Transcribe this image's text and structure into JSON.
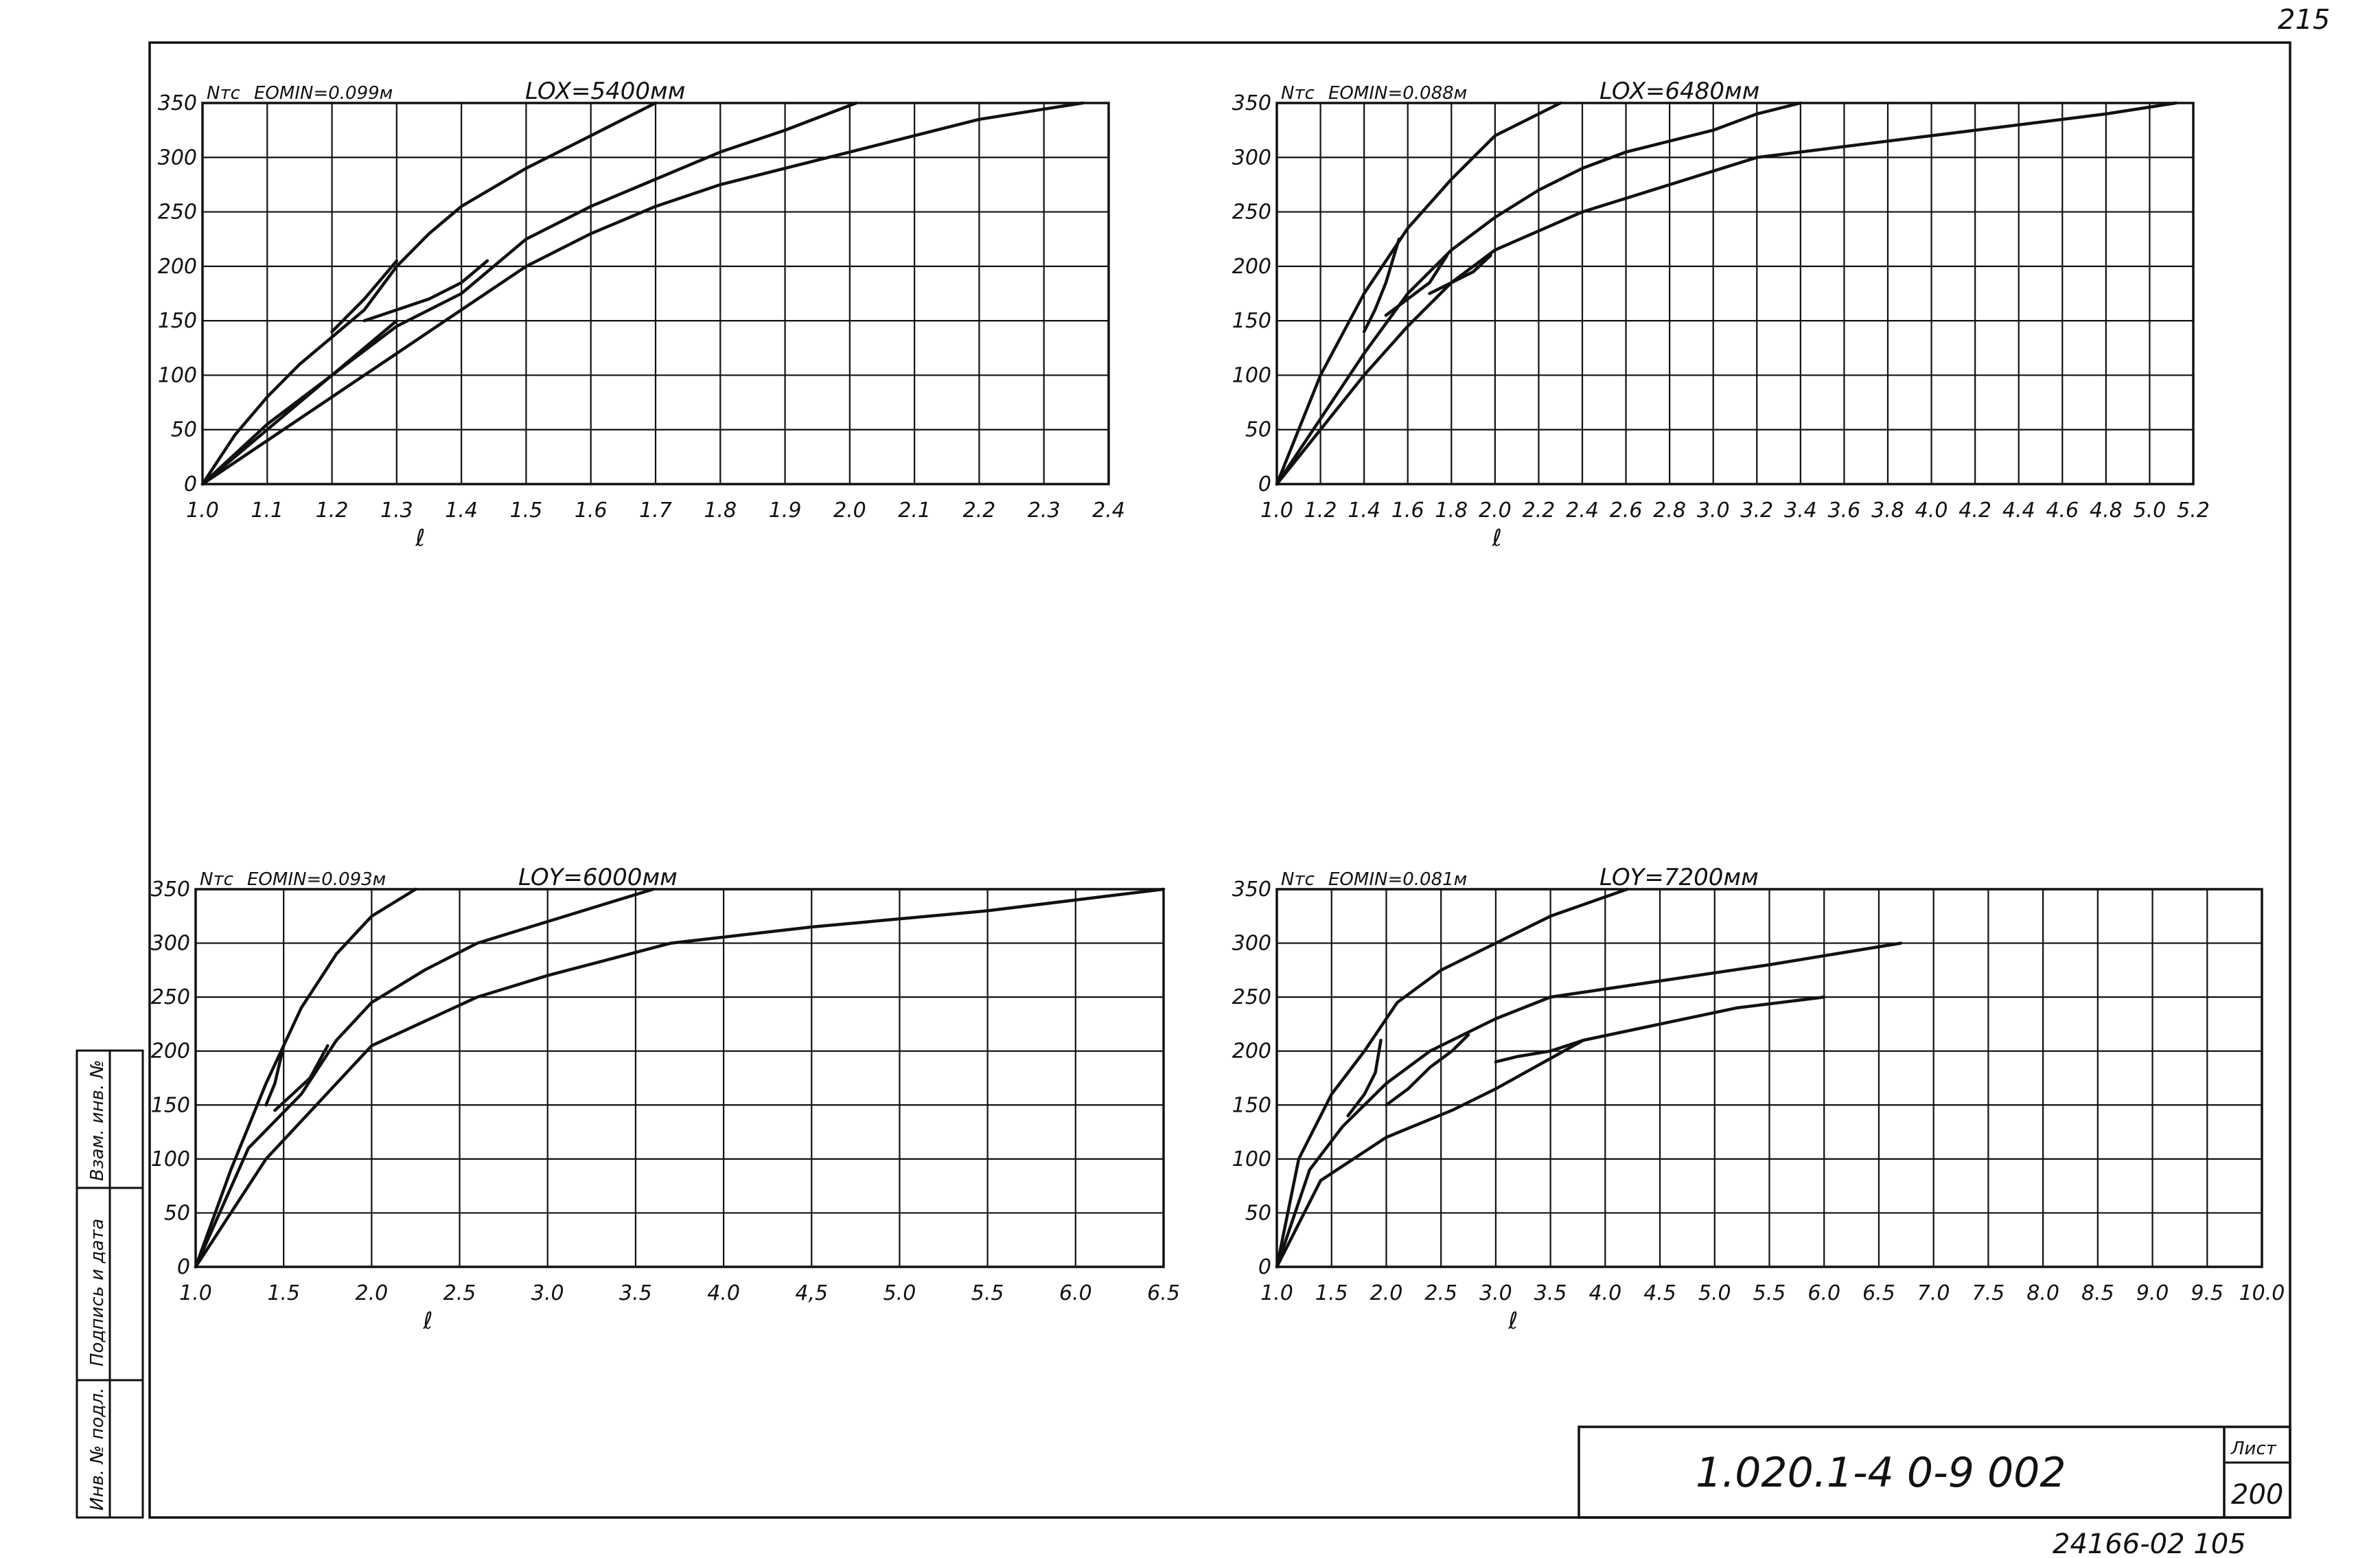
{
  "sheet": {
    "page_number": "215",
    "doc_code": "1.020.1-4 0-9 002",
    "sheet_label": "Лист",
    "sheet_number": "200",
    "footer_code": "24166-02 105",
    "side_stamp": [
      "Инв. № подл.",
      "Подпись и дата",
      "Взам. инв. №"
    ]
  },
  "chart_data": [
    {
      "type": "line",
      "ylabel": "Nтс",
      "xlabel": "ℓ",
      "emin_label": "EOMIN=0.099м",
      "length_label": "LOX=5400мм",
      "xlim": [
        1.0,
        2.4
      ],
      "ylim": [
        0,
        350
      ],
      "x_ticks": [
        1.0,
        1.1,
        1.2,
        1.3,
        1.4,
        1.5,
        1.6,
        1.7,
        1.8,
        1.9,
        2.0,
        2.1,
        2.2,
        2.3,
        2.4
      ],
      "x_tick_labels": [
        "1.0",
        "1.1",
        "1.2",
        "1.3",
        "1.4",
        "1.5",
        "1.6",
        "1.7",
        "1.8",
        "1.9",
        "2.0",
        "2.1",
        "2.2",
        "2.3",
        "2.4"
      ],
      "y_ticks": [
        0,
        50,
        100,
        150,
        200,
        250,
        300,
        350
      ],
      "y_tick_labels": [
        "0",
        "50",
        "100",
        "150",
        "200",
        "250",
        "300",
        "350"
      ],
      "grid": true,
      "series": [
        {
          "x": [
            1.0,
            1.05,
            1.1,
            1.15,
            1.2,
            1.25,
            1.3,
            1.35,
            1.4,
            1.5,
            1.6,
            1.7
          ],
          "y": [
            0,
            45,
            80,
            110,
            135,
            160,
            200,
            230,
            255,
            290,
            320,
            350
          ]
        },
        {
          "x": [
            1.0,
            1.1,
            1.2,
            1.3,
            1.4,
            1.5,
            1.6,
            1.7,
            1.8,
            1.9,
            2.01
          ],
          "y": [
            0,
            55,
            100,
            145,
            175,
            225,
            255,
            280,
            305,
            325,
            350
          ]
        },
        {
          "x": [
            1.0,
            1.1,
            1.2,
            1.3,
            1.4,
            1.5,
            1.6,
            1.7,
            1.8,
            1.9,
            2.0,
            2.1,
            2.2,
            2.36
          ],
          "y": [
            0,
            40,
            80,
            120,
            160,
            200,
            230,
            255,
            275,
            290,
            305,
            320,
            335,
            350
          ]
        },
        {
          "x": [
            1.0,
            1.1,
            1.2,
            1.3
          ],
          "y": [
            0,
            50,
            100,
            150
          ]
        },
        {
          "x": [
            1.3,
            1.25,
            1.2
          ],
          "y": [
            205,
            170,
            140
          ]
        },
        {
          "x": [
            1.44,
            1.4,
            1.35,
            1.3,
            1.25
          ],
          "y": [
            205,
            185,
            170,
            160,
            150
          ]
        }
      ]
    },
    {
      "type": "line",
      "ylabel": "Nтс",
      "xlabel": "ℓ",
      "emin_label": "EOMIN=0.088м",
      "length_label": "LOX=6480мм",
      "xlim": [
        1.0,
        5.2
      ],
      "ylim": [
        0,
        350
      ],
      "x_ticks": [
        1.0,
        1.2,
        1.4,
        1.6,
        1.8,
        2.0,
        2.2,
        2.4,
        2.6,
        2.8,
        3.0,
        3.2,
        3.4,
        3.6,
        3.8,
        4.0,
        4.2,
        4.4,
        4.6,
        4.8,
        5.0,
        5.2
      ],
      "x_tick_labels": [
        "1.0",
        "1.2",
        "1.4",
        "1.6",
        "1.8",
        "2.0",
        "2.2",
        "2.4",
        "2.6",
        "2.8",
        "3.0",
        "3.2",
        "3.4",
        "3.6",
        "3.8",
        "4.0",
        "4.2",
        "4.4",
        "4.6",
        "4.8",
        "5.0",
        "5.2"
      ],
      "y_ticks": [
        0,
        50,
        100,
        150,
        200,
        250,
        300,
        350
      ],
      "y_tick_labels": [
        "0",
        "50",
        "100",
        "150",
        "200",
        "250",
        "300",
        "350"
      ],
      "grid": true,
      "series": [
        {
          "x": [
            1.0,
            1.2,
            1.4,
            1.6,
            1.8,
            2.0,
            2.2,
            2.3
          ],
          "y": [
            0,
            100,
            175,
            235,
            280,
            320,
            340,
            350
          ]
        },
        {
          "x": [
            1.0,
            1.2,
            1.4,
            1.6,
            1.8,
            2.0,
            2.2,
            2.4,
            2.6,
            2.8,
            3.0,
            3.2,
            3.4
          ],
          "y": [
            0,
            60,
            120,
            175,
            215,
            245,
            270,
            290,
            305,
            315,
            325,
            340,
            350
          ]
        },
        {
          "x": [
            1.0,
            1.2,
            1.4,
            1.6,
            1.8,
            2.0,
            2.4,
            3.2,
            4.0,
            4.8,
            5.12
          ],
          "y": [
            0,
            50,
            100,
            145,
            185,
            215,
            250,
            300,
            320,
            340,
            350
          ]
        },
        {
          "x": [
            1.56,
            1.5,
            1.45,
            1.4
          ],
          "y": [
            225,
            185,
            160,
            140
          ]
        },
        {
          "x": [
            1.78,
            1.7,
            1.6,
            1.5
          ],
          "y": [
            210,
            185,
            170,
            155
          ]
        },
        {
          "x": [
            1.98,
            1.9,
            1.8,
            1.7
          ],
          "y": [
            210,
            195,
            185,
            175
          ]
        }
      ]
    },
    {
      "type": "line",
      "ylabel": "Nтс",
      "xlabel": "ℓ",
      "emin_label": "EOMIN=0.093м",
      "length_label": "LOY=6000мм",
      "xlim": [
        1.0,
        6.5
      ],
      "ylim": [
        0,
        350
      ],
      "x_ticks": [
        1.0,
        1.5,
        2.0,
        2.5,
        3.0,
        3.5,
        4.0,
        4.5,
        5.0,
        5.5,
        6.0,
        6.5
      ],
      "x_tick_labels": [
        "1.0",
        "1.5",
        "2.0",
        "2.5",
        "3.0",
        "3.5",
        "4.0",
        "4,5",
        "5.0",
        "5.5",
        "6.0",
        "6.5"
      ],
      "y_ticks": [
        0,
        50,
        100,
        150,
        200,
        250,
        300,
        350
      ],
      "y_tick_labels": [
        "0",
        "50",
        "100",
        "150",
        "200",
        "250",
        "300",
        "350"
      ],
      "grid": true,
      "series": [
        {
          "x": [
            1.0,
            1.2,
            1.4,
            1.6,
            1.8,
            2.0,
            2.25
          ],
          "y": [
            0,
            90,
            170,
            240,
            290,
            325,
            350
          ]
        },
        {
          "x": [
            1.0,
            1.3,
            1.6,
            1.8,
            2.0,
            2.3,
            2.6,
            3.0,
            3.6
          ],
          "y": [
            0,
            110,
            160,
            210,
            245,
            275,
            300,
            320,
            350
          ]
        },
        {
          "x": [
            1.0,
            1.4,
            2.0,
            2.6,
            3.0,
            3.7,
            4.5,
            5.5,
            6.5
          ],
          "y": [
            0,
            100,
            205,
            250,
            270,
            300,
            315,
            330,
            350
          ]
        },
        {
          "x": [
            1.5,
            1.45,
            1.4
          ],
          "y": [
            205,
            170,
            150
          ]
        },
        {
          "x": [
            1.75,
            1.65,
            1.55,
            1.45
          ],
          "y": [
            205,
            175,
            160,
            145
          ]
        }
      ]
    },
    {
      "type": "line",
      "ylabel": "Nтс",
      "xlabel": "ℓ",
      "emin_label": "EOMIN=0.081м",
      "length_label": "LOY=7200мм",
      "xlim": [
        1.0,
        10.0
      ],
      "ylim": [
        0,
        350
      ],
      "x_ticks": [
        1.0,
        1.5,
        2.0,
        2.5,
        3.0,
        3.5,
        4.0,
        4.5,
        5.0,
        5.5,
        6.0,
        6.5,
        7.0,
        7.5,
        8.0,
        8.5,
        9.0,
        9.5,
        10.0
      ],
      "x_tick_labels": [
        "1.0",
        "1.5",
        "2.0",
        "2.5",
        "3.0",
        "3.5",
        "4.0",
        "4.5",
        "5.0",
        "5.5",
        "6.0",
        "6.5",
        "7.0",
        "7.5",
        "8.0",
        "8.5",
        "9.0",
        "9.5",
        "10.0"
      ],
      "y_ticks": [
        0,
        50,
        100,
        150,
        200,
        250,
        300,
        350
      ],
      "y_tick_labels": [
        "0",
        "50",
        "100",
        "150",
        "200",
        "250",
        "300",
        "350"
      ],
      "grid": true,
      "series": [
        {
          "x": [
            1.0,
            1.2,
            1.5,
            1.8,
            2.1,
            2.5,
            3.0,
            3.5,
            4.2
          ],
          "y": [
            0,
            100,
            160,
            200,
            245,
            275,
            300,
            325,
            350
          ]
        },
        {
          "x": [
            1.0,
            1.3,
            1.6,
            2.0,
            2.4,
            3.0,
            3.5,
            4.5,
            5.5,
            6.7
          ],
          "y": [
            0,
            90,
            130,
            170,
            200,
            230,
            250,
            265,
            280,
            300
          ]
        },
        {
          "x": [
            1.0,
            1.4,
            2.0,
            2.6,
            3.0,
            3.8,
            4.5,
            5.2,
            6.0
          ],
          "y": [
            0,
            80,
            120,
            145,
            165,
            210,
            225,
            240,
            250
          ]
        },
        {
          "x": [
            1.95,
            1.9,
            1.8,
            1.65
          ],
          "y": [
            210,
            180,
            160,
            140
          ]
        },
        {
          "x": [
            2.75,
            2.6,
            2.4,
            2.2,
            2.0
          ],
          "y": [
            215,
            200,
            185,
            165,
            150
          ]
        },
        {
          "x": [
            3.8,
            3.5,
            3.2,
            3.0
          ],
          "y": [
            210,
            200,
            195,
            190
          ]
        }
      ]
    }
  ]
}
